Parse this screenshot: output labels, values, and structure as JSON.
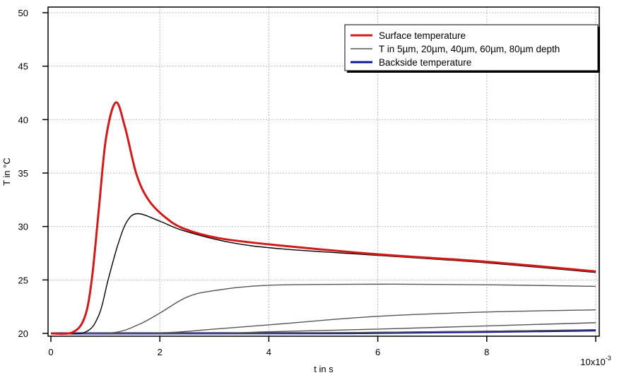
{
  "chart_data": {
    "type": "line",
    "xlabel": "t in s",
    "ylabel": "T in °C",
    "x_multiplier_label": "10x10",
    "x_multiplier_exp": "-3",
    "xlim": [
      0,
      10
    ],
    "ylim": [
      20,
      50
    ],
    "xticks": [
      "0",
      "2",
      "4",
      "6",
      "8"
    ],
    "xtick_values": [
      0,
      2,
      4,
      6,
      8,
      10
    ],
    "yticks": [
      20,
      25,
      30,
      35,
      40,
      45,
      50
    ],
    "grid": true,
    "legend_position": "top-right",
    "legend": [
      {
        "label": "Surface temperature",
        "color": "#d21a1a"
      },
      {
        "label": "T in 5µm, 20µm, 40µm, 60µm, 80µm depth",
        "color": "#555555"
      },
      {
        "label": "Backside temperature",
        "color": "#10169a"
      }
    ],
    "series": [
      {
        "color": "#d21a1a",
        "width": 3,
        "x": [
          0,
          0.4,
          0.62,
          0.75,
          0.88,
          1.01,
          1.19,
          1.36,
          1.57,
          1.79,
          2.09,
          2.44,
          3.09,
          4.25,
          6,
          8,
          10
        ],
        "y": [
          20,
          20.1,
          21.5,
          25,
          31.6,
          38.2,
          41.6,
          39.3,
          34.9,
          32.5,
          30.9,
          29.8,
          28.9,
          28.2,
          27.4,
          26.7,
          25.8
        ]
      },
      {
        "color": "#000000",
        "width": 1.4,
        "x": [
          0,
          0.62,
          0.88,
          1.05,
          1.23,
          1.4,
          1.6,
          2.0,
          2.44,
          3.3,
          4.25,
          6,
          8,
          10
        ],
        "y": [
          20,
          20.1,
          21.7,
          25,
          28.3,
          30.5,
          31.2,
          30.5,
          29.6,
          28.5,
          27.9,
          27.3,
          26.6,
          25.7
        ]
      },
      {
        "color": "#555555",
        "width": 1.4,
        "x": [
          0,
          1.1,
          1.6,
          2.0,
          2.5,
          3.0,
          4.0,
          6,
          8,
          10
        ],
        "y": [
          20,
          20.05,
          20.8,
          21.9,
          23.4,
          24.0,
          24.5,
          24.6,
          24.55,
          24.4
        ]
      },
      {
        "color": "#555555",
        "width": 1.4,
        "x": [
          0,
          2.0,
          3.0,
          4.25,
          6,
          8,
          10
        ],
        "y": [
          20,
          20.05,
          20.4,
          20.9,
          21.6,
          22.0,
          22.2
        ]
      },
      {
        "color": "#555555",
        "width": 1.4,
        "x": [
          0,
          3.0,
          4.0,
          6,
          8,
          10
        ],
        "y": [
          20,
          20.02,
          20.15,
          20.4,
          20.7,
          21.0
        ]
      },
      {
        "color": "#555555",
        "width": 1.4,
        "x": [
          0,
          4.0,
          6,
          8,
          10
        ],
        "y": [
          20,
          20.02,
          20.1,
          20.2,
          20.35
        ]
      },
      {
        "color": "#10169a",
        "width": 3,
        "x": [
          0,
          5,
          6,
          8,
          10
        ],
        "y": [
          20,
          20.02,
          20.05,
          20.15,
          20.28
        ]
      }
    ]
  }
}
